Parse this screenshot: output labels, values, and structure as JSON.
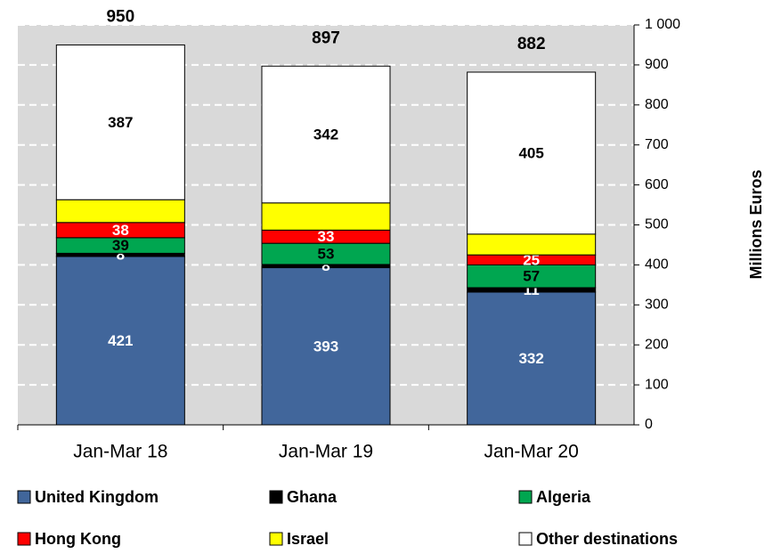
{
  "chart_data": {
    "type": "stacked_bar",
    "categories": [
      "Jan-Mar 18",
      "Jan-Mar 19",
      "Jan-Mar 20"
    ],
    "series": [
      {
        "name": "United Kingdom",
        "color": "#41669b",
        "label_color": "#ffffff",
        "values": [
          421,
          393,
          332
        ]
      },
      {
        "name": "Ghana",
        "color": "#000000",
        "label_color": "#ffffff",
        "values": [
          8,
          8,
          11
        ]
      },
      {
        "name": "Algeria",
        "color": "#00a650",
        "label_color": "#000000",
        "values": [
          39,
          53,
          57
        ]
      },
      {
        "name": "Hong Kong",
        "color": "#ff0000",
        "label_color": "#ffffff",
        "values": [
          38,
          33,
          25
        ]
      },
      {
        "name": "Israel",
        "color": "#ffff00",
        "show_labels": false,
        "values": [
          57,
          68,
          52
        ]
      },
      {
        "name": "Other destinations",
        "color": "#ffffff",
        "label_color": "#000000",
        "values": [
          387,
          342,
          405
        ]
      }
    ],
    "totals": [
      950,
      897,
      882
    ],
    "ylabel": "Millions Euros",
    "ylim": [
      0,
      1000
    ],
    "yticks": [
      0,
      100,
      200,
      300,
      400,
      500,
      600,
      700,
      800,
      900,
      {
        "value": 1000,
        "label": "1 000"
      }
    ],
    "y_axis_side": "right",
    "grid": true
  }
}
